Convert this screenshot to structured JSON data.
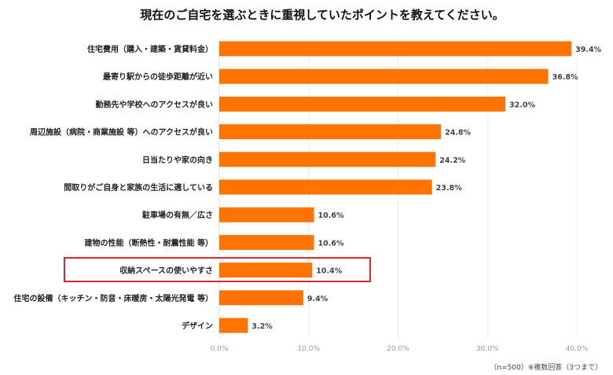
{
  "chart_data": {
    "type": "bar",
    "orientation": "horizontal",
    "title": "現在のご自宅を選ぶときに重視していたポイントを教えてください。",
    "categories": [
      "住宅費用（購入・建築・賃貸料金）",
      "最寄り駅からの徒歩距離が近い",
      "勤務先や学校へのアクセスが良い",
      "周辺施設（病院・商業施設 等）へのアクセスが良い",
      "日当たりや家の向き",
      "間取りがご自身と家族の生活に適している",
      "駐車場の有無／広さ",
      "建物の性能（断熱性・耐震性能 等）",
      "収納スペースの使いやすさ",
      "住宅の設備（キッチン・防音・床暖房・太陽光発電 等）",
      "デザイン"
    ],
    "values": [
      39.4,
      36.8,
      32.0,
      24.8,
      24.2,
      23.8,
      10.6,
      10.6,
      10.4,
      9.4,
      3.2
    ],
    "value_labels": [
      "39.4%",
      "36.8%",
      "32.0%",
      "24.8%",
      "24.2%",
      "23.8%",
      "10.6%",
      "10.6%",
      "10.4%",
      "9.4%",
      "3.2%"
    ],
    "xlim": [
      0,
      40
    ],
    "xticks": [
      "0.0%",
      "10.0%",
      "20.0%",
      "30.0%",
      "40.0%"
    ],
    "grid": true,
    "highlighted_category": "収納スペースの使いやすさ",
    "bar_color": "#ff7300",
    "highlight_color": "#e0262b"
  },
  "note": "（n=500）※複数回答（3つまで）"
}
